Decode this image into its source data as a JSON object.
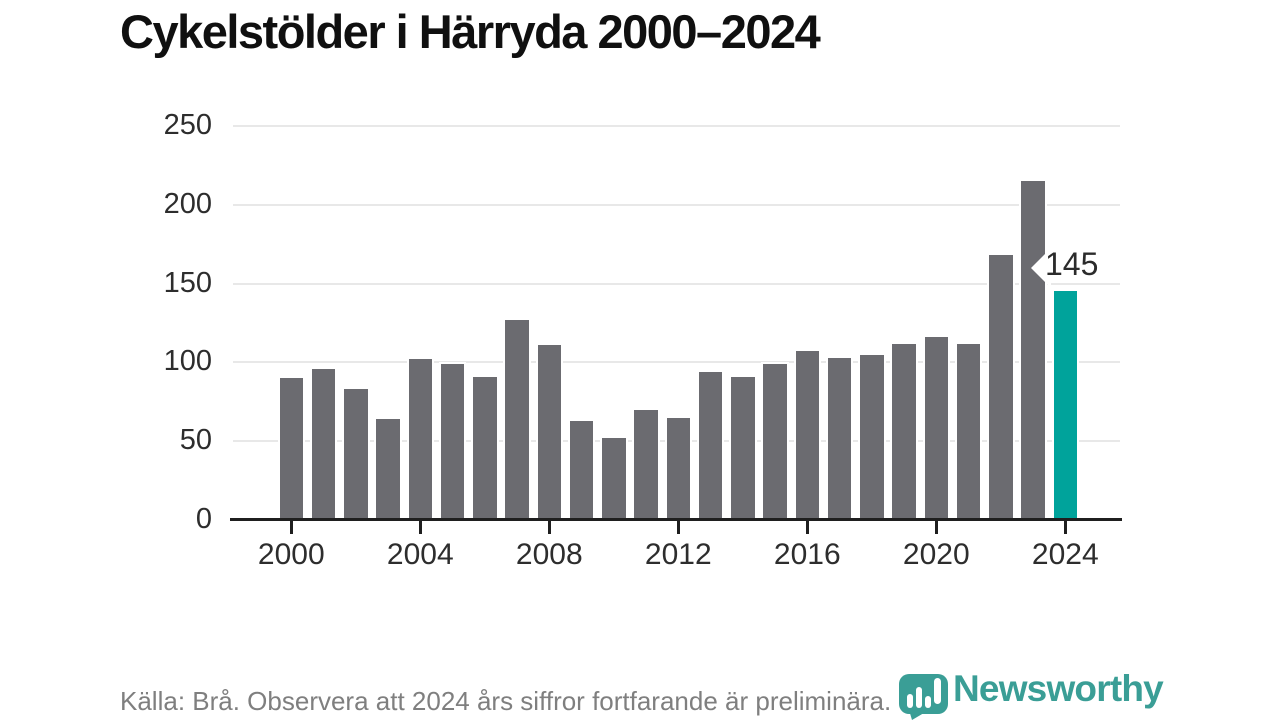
{
  "chart_data": {
    "type": "bar",
    "title": "Cykelstölder i Härryda 2000–2024",
    "categories": [
      2000,
      2001,
      2002,
      2003,
      2004,
      2005,
      2006,
      2007,
      2008,
      2009,
      2010,
      2011,
      2012,
      2013,
      2014,
      2015,
      2016,
      2017,
      2018,
      2019,
      2020,
      2021,
      2022,
      2023,
      2024
    ],
    "values": [
      90,
      96,
      83,
      64,
      102,
      99,
      91,
      127,
      111,
      63,
      52,
      70,
      65,
      94,
      91,
      99,
      107,
      103,
      105,
      112,
      116,
      112,
      168,
      215,
      145
    ],
    "highlight_index": 24,
    "highlight_label": "145",
    "xlabel": "",
    "ylabel": "",
    "ylim": [
      0,
      250
    ],
    "yticks": [
      0,
      50,
      100,
      150,
      200,
      250
    ],
    "xticks": [
      2000,
      2004,
      2008,
      2012,
      2016,
      2020,
      2024
    ],
    "grid": true,
    "legend": false
  },
  "footer": {
    "source_note": "Källa: Brå. Observera att 2024 års siffror fortfarande är preliminära."
  },
  "logo": {
    "text": "Newsworthy"
  },
  "colors": {
    "bar": "#6b6b70",
    "highlight": "#00a39b",
    "gridline": "#e8e8e8",
    "axis": "#1f1f1f",
    "logo": "#3a9e96"
  }
}
